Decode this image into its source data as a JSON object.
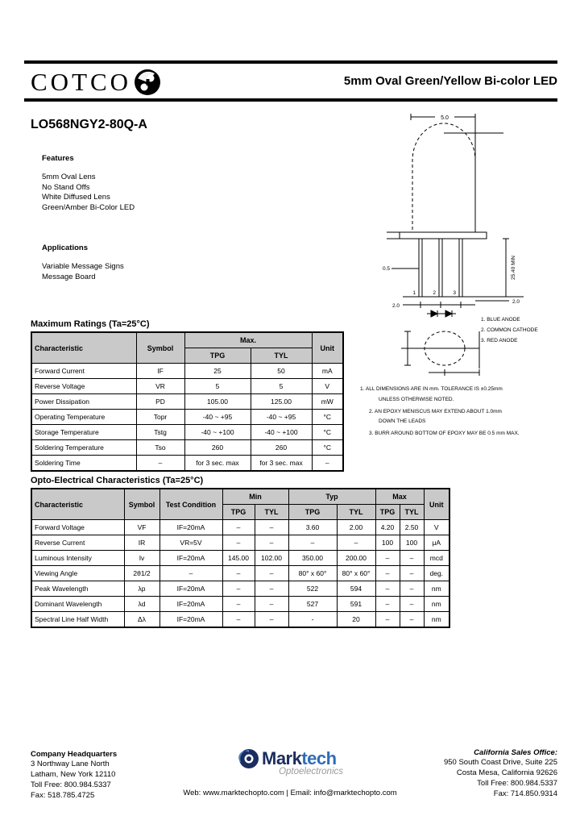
{
  "header": {
    "brand": "COTCO",
    "title": "5mm Oval Green/Yellow Bi-color LED"
  },
  "part_number": "LO568NGY2-80Q-A",
  "features": {
    "heading": "Features",
    "items": [
      "5mm Oval Lens",
      "No Stand Offs",
      "White Diffused Lens",
      "Green/Amber Bi-Color LED"
    ]
  },
  "applications": {
    "heading": "Applications",
    "items": [
      "Variable Message Signs",
      "Message Board"
    ]
  },
  "drawing": {
    "dims": {
      "top_width": "5.0",
      "length": "25.40 MIN",
      "lead_thickness": "0.5",
      "lead_space_left": "2.0",
      "lead_space_right": "2.0",
      "pin1": "1",
      "pin2": "2",
      "pin3": "3"
    },
    "legend": [
      "1. BLUE ANODE",
      "2. COMMON CATHODE",
      "3. RED ANODE"
    ],
    "notes": [
      "1. ALL DIMENSIONS ARE IN mm. TOLERANCE IS ±0.25mm",
      "UNLESS OTHERWISE NOTED.",
      "2. AN EPOXY MENISCUS MAY EXTEND ABOUT 1.0mm",
      "DOWN THE LEADS",
      "3. BURR AROUND BOTTOM OF EPOXY MAY BE 0.5 mm MAX."
    ]
  },
  "max_ratings": {
    "heading": "Maximum Ratings (Ta=25°C)",
    "headers": {
      "characteristic": "Characteristic",
      "symbol": "Symbol",
      "max": "Max.",
      "tpg": "TPG",
      "tyl": "TYL",
      "unit": "Unit"
    },
    "rows": [
      {
        "characteristic": "Forward Current",
        "symbol": "IF",
        "tpg": "25",
        "tyl": "50",
        "unit": "mA"
      },
      {
        "characteristic": "Reverse Voltage",
        "symbol": "VR",
        "tpg": "5",
        "tyl": "5",
        "unit": "V"
      },
      {
        "characteristic": "Power Dissipation",
        "symbol": "PD",
        "tpg": "105.00",
        "tyl": "125.00",
        "unit": "mW"
      },
      {
        "characteristic": "Operating Temperature",
        "symbol": "Topr",
        "tpg": "-40 ~ +95",
        "tyl": "-40 ~ +95",
        "unit": "°C"
      },
      {
        "characteristic": "Storage Temperature",
        "symbol": "Tstg",
        "tpg": "-40 ~ +100",
        "tyl": "-40 ~ +100",
        "unit": "°C"
      },
      {
        "characteristic": "Soldering Temperature",
        "symbol": "Tso",
        "tpg": "260",
        "tyl": "260",
        "unit": "°C"
      },
      {
        "characteristic": "Soldering Time",
        "symbol": "–",
        "tpg": "for 3 sec. max",
        "tyl": "for 3 sec. max",
        "unit": "–"
      }
    ]
  },
  "opto": {
    "heading": "Opto-Electrical Characteristics (Ta=25°C)",
    "headers": {
      "characteristic": "Characteristic",
      "symbol": "Symbol",
      "test": "Test Condition",
      "min": "Min",
      "typ": "Typ",
      "max": "Max",
      "tpg": "TPG",
      "tyl": "TYL",
      "unit": "Unit"
    },
    "rows": [
      {
        "characteristic": "Forward Voltage",
        "symbol": "VF",
        "test": "IF=20mA",
        "min_tpg": "–",
        "min_tyl": "–",
        "typ_tpg": "3.60",
        "typ_tyl": "2.00",
        "max_tpg": "4.20",
        "max_tyl": "2.50",
        "unit": "V"
      },
      {
        "characteristic": "Reverse Current",
        "symbol": "IR",
        "test": "VR=5V",
        "min_tpg": "–",
        "min_tyl": "–",
        "typ_tpg": "–",
        "typ_tyl": "–",
        "max_tpg": "100",
        "max_tyl": "100",
        "unit": "μA"
      },
      {
        "characteristic": "Luminous Intensity",
        "symbol": "Iv",
        "test": "IF=20mA",
        "min_tpg": "145.00",
        "min_tyl": "102.00",
        "typ_tpg": "350.00",
        "typ_tyl": "200.00",
        "max_tpg": "–",
        "max_tyl": "–",
        "unit": "mcd"
      },
      {
        "characteristic": "Viewing Angle",
        "symbol": "2θ1/2",
        "test": "–",
        "min_tpg": "–",
        "min_tyl": "–",
        "typ_tpg": "80° x 60°",
        "typ_tyl": "80° x 60°",
        "max_tpg": "–",
        "max_tyl": "–",
        "unit": "deg."
      },
      {
        "characteristic": "Peak Wavelength",
        "symbol": "λp",
        "test": "IF=20mA",
        "min_tpg": "–",
        "min_tyl": "–",
        "typ_tpg": "522",
        "typ_tyl": "594",
        "max_tpg": "–",
        "max_tyl": "–",
        "unit": "nm"
      },
      {
        "characteristic": "Dominant Wavelength",
        "symbol": "λd",
        "test": "IF=20mA",
        "min_tpg": "–",
        "min_tyl": "–",
        "typ_tpg": "527",
        "typ_tyl": "591",
        "max_tpg": "–",
        "max_tyl": "–",
        "unit": "nm"
      },
      {
        "characteristic": "Spectral Line Half Width",
        "symbol": "Δλ",
        "test": "IF=20mA",
        "min_tpg": "–",
        "min_tyl": "–",
        "typ_tpg": "-",
        "typ_tyl": "20",
        "max_tpg": "–",
        "max_tyl": "–",
        "unit": "nm"
      }
    ]
  },
  "footer": {
    "hq": {
      "heading": "Company Headquarters",
      "lines": [
        "3 Northway Lane North",
        "Latham, New York 12110",
        "Toll Free: 800.984.5337",
        "Fax: 518.785.4725"
      ]
    },
    "logo": {
      "mark": "Mark",
      "tech": "tech",
      "sub": "Optoelectronics"
    },
    "web_line": "Web: www.marktechopto.com | Email: info@marktechopto.com",
    "ca": {
      "heading": "California Sales Office:",
      "lines": [
        "950 South Coast Drive, Suite 225",
        "Costa Mesa, California 92626",
        "Toll Free: 800.984.5337",
        "Fax: 714.850.9314"
      ]
    }
  },
  "colors": {
    "logo_navy": "#1b2d5e",
    "logo_blue": "#2f6db5",
    "logo_gray": "#9b9b9b",
    "table_header_bg": "#c9c9c9"
  }
}
